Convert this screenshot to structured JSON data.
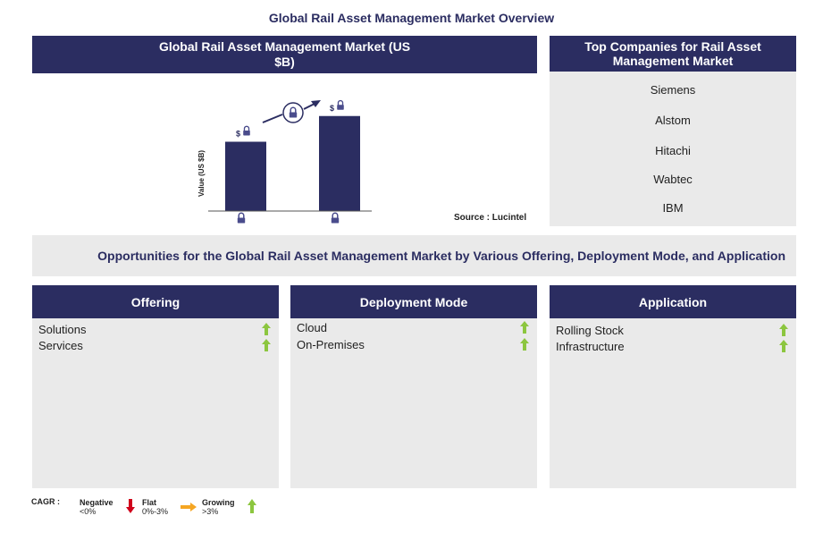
{
  "page_title": "Global Rail Asset Management Market Overview",
  "chart": {
    "header": "Global Rail Asset Management Market (US $B)",
    "ylabel": "Value (US $B)",
    "value_prefix": "$",
    "source": "Source : Lucintel"
  },
  "chart_data": {
    "type": "bar",
    "categories": [
      "",
      ""
    ],
    "values": [
      0.62,
      0.85
    ],
    "title": "Global Rail Asset Management Market (US $B)",
    "xlabel": "",
    "ylabel": "Value (US $B)",
    "ylim": [
      0,
      1
    ],
    "grid": false,
    "bar_color": "#2b2d61",
    "note": "values and category labels are locked (padlock icons)"
  },
  "companies": {
    "header": "Top Companies for Rail Asset Management Market",
    "items": [
      "Siemens",
      "Alstom",
      "Hitachi",
      "Wabtec",
      "IBM"
    ]
  },
  "opportunities": {
    "title": "Opportunities for the Global Rail Asset Management Market by Various Offering, Deployment Mode, and Application"
  },
  "segments": [
    {
      "title": "Offering",
      "items": [
        "Solutions",
        "Services"
      ]
    },
    {
      "title": "Deployment Mode",
      "items": [
        "Cloud",
        "On-Premises"
      ]
    },
    {
      "title": "Application",
      "items": [
        "Rolling Stock",
        "Infrastructure"
      ]
    }
  ],
  "legend": {
    "label": "CAGR :",
    "negative": {
      "label": "Negative",
      "range": "<0%"
    },
    "flat": {
      "label": "Flat",
      "range": "0%-3%"
    },
    "growing": {
      "label": "Growing",
      "range": ">3%"
    }
  },
  "colors": {
    "navy": "#2b2d61",
    "panel_grey": "#eaeaea",
    "growth_green": "#8cc63f",
    "negative_red": "#d0021b",
    "flat_orange": "#f5a623"
  }
}
